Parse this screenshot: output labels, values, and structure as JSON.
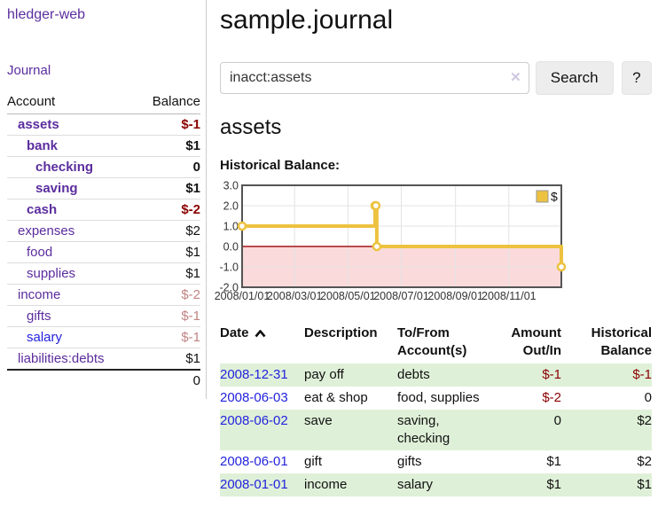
{
  "app": {
    "title": "hledger-web",
    "nav": {
      "journal": "Journal"
    }
  },
  "sidebar": {
    "accounts": {
      "header": {
        "account": "Account",
        "balance": "Balance"
      },
      "rows": [
        {
          "account": "assets",
          "balance": "$-1",
          "indent": 1,
          "bold": true,
          "balance_style": "negative"
        },
        {
          "account": "bank",
          "balance": "$1",
          "indent": 2,
          "bold": true,
          "balance_style": "normal"
        },
        {
          "account": "checking",
          "balance": "0",
          "indent": 3,
          "bold": true,
          "balance_style": "normal"
        },
        {
          "account": "saving",
          "balance": "$1",
          "indent": 3,
          "bold": true,
          "balance_style": "normal"
        },
        {
          "account": "cash",
          "balance": "$-2",
          "indent": 2,
          "bold": true,
          "balance_style": "negative"
        },
        {
          "account": "expenses",
          "balance": "$2",
          "indent": 1,
          "bold": false,
          "balance_style": "normal"
        },
        {
          "account": "food",
          "balance": "$1",
          "indent": 2,
          "bold": false,
          "balance_style": "normal"
        },
        {
          "account": "supplies",
          "balance": "$1",
          "indent": 2,
          "bold": false,
          "balance_style": "normal"
        },
        {
          "account": "income",
          "balance": "$-2",
          "indent": 1,
          "bold": false,
          "balance_style": "negative_dim"
        },
        {
          "account": "gifts",
          "balance": "$-1",
          "indent": 2,
          "bold": false,
          "balance_style": "negative_dim"
        },
        {
          "account": "salary",
          "balance": "$-1",
          "indent": 2,
          "bold": false,
          "balance_style": "negative_dim",
          "link_style": "blue"
        },
        {
          "account": "liabilities:debts",
          "balance": "$1",
          "indent": 1,
          "bold": false,
          "balance_style": "normal"
        }
      ],
      "total": "0"
    }
  },
  "main": {
    "title": "sample.journal",
    "search": {
      "value": "inacct:assets",
      "clear_icon": "✕",
      "button": "Search",
      "help": "?"
    },
    "account_title": "assets",
    "chart_heading": "Historical Balance:"
  },
  "chart_data": {
    "type": "line",
    "title": "Historical Balance:",
    "step": true,
    "ylim": [
      -2,
      3
    ],
    "xlim_days": [
      0,
      365
    ],
    "grid": true,
    "legend_position": "top-right",
    "series": [
      {
        "name": "$",
        "points": [
          {
            "date": "2008-01-01",
            "day": 0,
            "value": 1
          },
          {
            "date": "2008-06-01",
            "day": 152,
            "value": 2
          },
          {
            "date": "2008-06-02",
            "day": 153,
            "value": 2
          },
          {
            "date": "2008-06-03",
            "day": 154,
            "value": 0
          },
          {
            "date": "2008-12-31",
            "day": 365,
            "value": -1
          }
        ]
      }
    ],
    "x_ticks": [
      {
        "day": 0,
        "label": "2008/01/01"
      },
      {
        "day": 60,
        "label": "2008/03/01"
      },
      {
        "day": 121,
        "label": "2008/05/01"
      },
      {
        "day": 182,
        "label": "2008/07/01"
      },
      {
        "day": 244,
        "label": "2008/09/01"
      },
      {
        "day": 305,
        "label": "2008/11/01"
      }
    ],
    "y_ticks": [
      {
        "value": 3,
        "label": "3.0"
      },
      {
        "value": 2,
        "label": "2.0"
      },
      {
        "value": 1,
        "label": "1.0"
      },
      {
        "value": 0,
        "label": "0.0"
      },
      {
        "value": -1,
        "label": "-1.0"
      },
      {
        "value": -2,
        "label": "-2.0"
      }
    ],
    "legend": {
      "label": "$"
    }
  },
  "register": {
    "headers": {
      "date": "Date",
      "description": "Description",
      "tofrom": "To/From Account(s)",
      "amount": "Amount Out/In",
      "balance": "Historical Balance",
      "sort_column": "date",
      "sort_direction": "ascending"
    },
    "rows": [
      {
        "date": "2008-12-31",
        "description": "pay off",
        "accounts": "debts",
        "amount": "$-1",
        "balance": "$-1",
        "amount_negative": true,
        "balance_negative": true
      },
      {
        "date": "2008-06-03",
        "description": "eat & shop",
        "accounts": "food, supplies",
        "amount": "$-2",
        "balance": "0",
        "amount_negative": true,
        "balance_negative": false
      },
      {
        "date": "2008-06-02",
        "description": "save",
        "accounts": "saving, checking",
        "amount": "0",
        "balance": "$2",
        "amount_negative": false,
        "balance_negative": false
      },
      {
        "date": "2008-06-01",
        "description": "gift",
        "accounts": "gifts",
        "amount": "$1",
        "balance": "$2",
        "amount_negative": false,
        "balance_negative": false
      },
      {
        "date": "2008-01-01",
        "description": "income",
        "accounts": "salary",
        "amount": "$1",
        "balance": "$1",
        "amount_negative": false,
        "balance_negative": false
      }
    ]
  },
  "colors": {
    "link_purple": "#5b2d9e",
    "link_blue": "#2323dd",
    "negative": "#8b0000",
    "negative_dim": "#c08383",
    "row_stripe": "#dff0d8",
    "border_light": "#dddddd",
    "button_bg": "#ededed",
    "chart_line": "#edc240",
    "chart_negative_fill": "#fadada",
    "chart_zero_line": "#a11414",
    "chart_border": "#545454",
    "chart_grid": "#e3e3e3"
  }
}
